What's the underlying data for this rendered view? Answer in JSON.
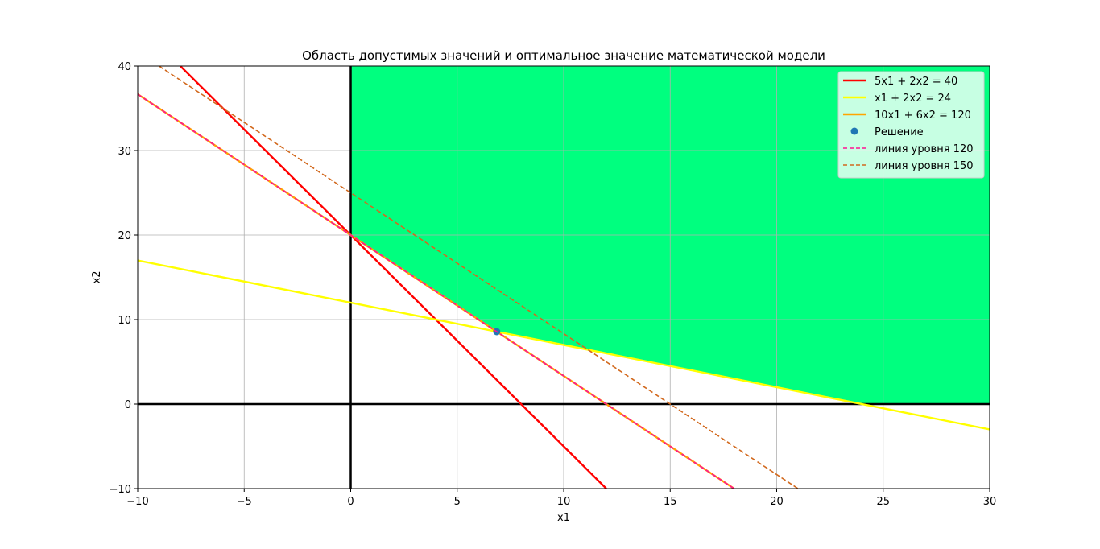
{
  "chart_data": {
    "type": "line",
    "title": "Область допустимых значений и оптимальное значение математической модели",
    "xlabel": "x1",
    "ylabel": "x2",
    "xlim": [
      -10,
      30
    ],
    "ylim": [
      -10,
      40
    ],
    "xticks": [
      -10,
      -5,
      0,
      5,
      10,
      15,
      20,
      25,
      30
    ],
    "yticks": [
      -10,
      0,
      10,
      20,
      30,
      40
    ],
    "xtick_labels": [
      "−10",
      "−5",
      "0",
      "5",
      "10",
      "15",
      "20",
      "25",
      "30"
    ],
    "ytick_labels": [
      "−10",
      "0",
      "10",
      "20",
      "30",
      "40"
    ],
    "grid": true,
    "legend_position": "upper-right",
    "feasible_region": {
      "color": "#00ff7f",
      "vertices": [
        [
          0,
          40
        ],
        [
          0,
          20
        ],
        [
          6.857,
          8.571
        ],
        [
          24,
          0
        ],
        [
          30,
          0
        ],
        [
          30,
          40
        ]
      ]
    },
    "axes_lines": [
      {
        "name": "x1-axis",
        "points": [
          [
            -10,
            0
          ],
          [
            30,
            0
          ]
        ],
        "color": "#000000"
      },
      {
        "name": "x2-axis",
        "points": [
          [
            0,
            -10
          ],
          [
            0,
            40
          ]
        ],
        "color": "#000000"
      }
    ],
    "series": [
      {
        "name": "5x1 + 2x2 = 40",
        "kind": "line",
        "style": "solid",
        "color": "#ff0000",
        "points": [
          [
            -8,
            40
          ],
          [
            12,
            -10
          ]
        ]
      },
      {
        "name": "x1 + 2x2 = 24",
        "kind": "line",
        "style": "solid",
        "color": "#ffff00",
        "points": [
          [
            -10,
            17
          ],
          [
            30,
            -3
          ]
        ]
      },
      {
        "name": "10x1 + 6x2 = 120",
        "kind": "line",
        "style": "solid",
        "color": "#ffa500",
        "points": [
          [
            -10,
            36.667
          ],
          [
            18,
            -10
          ]
        ]
      },
      {
        "name": "Решение",
        "kind": "point",
        "color": "#1f77b4",
        "points": [
          [
            6.857,
            8.571
          ]
        ]
      },
      {
        "name": "линия уровня 120",
        "kind": "line",
        "style": "dashed",
        "color": "#ff1493",
        "points": [
          [
            -10,
            36.667
          ],
          [
            18,
            -10
          ]
        ]
      },
      {
        "name": "линия уровня 150",
        "kind": "line",
        "style": "dashed",
        "color": "#d2691e",
        "points": [
          [
            -9,
            40
          ],
          [
            21,
            -10
          ]
        ]
      }
    ]
  }
}
